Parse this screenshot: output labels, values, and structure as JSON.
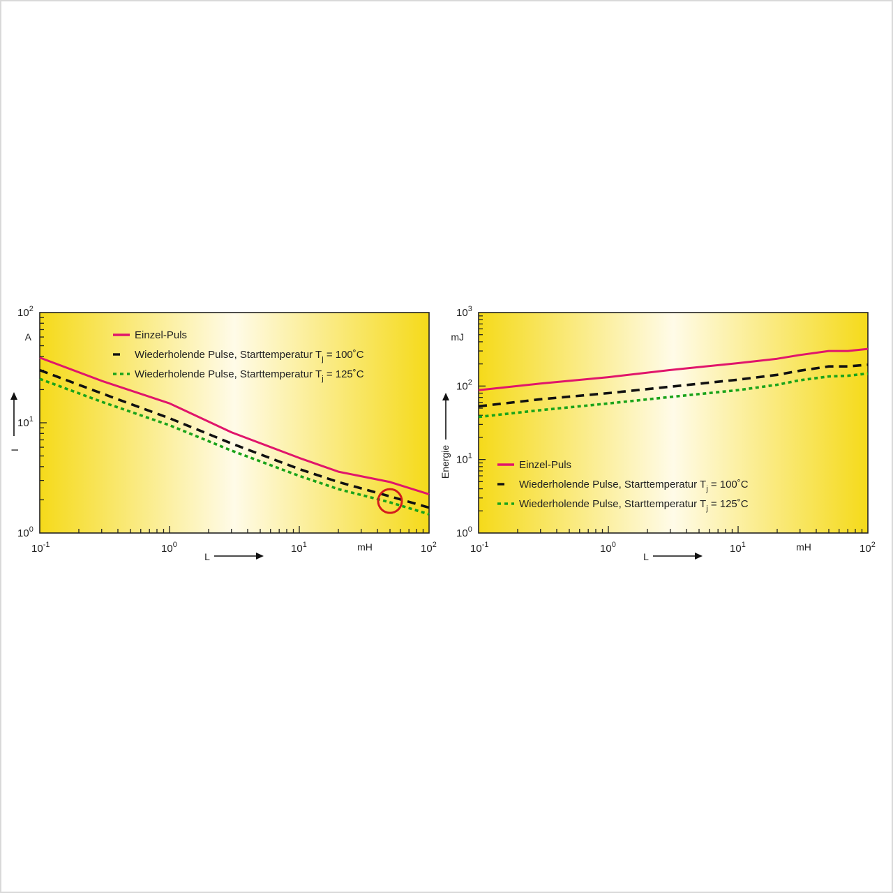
{
  "colors": {
    "series_single": "#e0156b",
    "series_100": "#111111",
    "series_125": "#1aa31a",
    "plot_bg_edge": "#f5da1a",
    "plot_bg_center": "#fffbe8",
    "marker_circle": "#d41c1c"
  },
  "chart_data": [
    {
      "type": "line",
      "x_scale": "log",
      "y_scale": "log",
      "xlim": [
        0.1,
        100
      ],
      "ylim": [
        1,
        100
      ],
      "xlabel": "L",
      "xunit": "mH",
      "ylabel": "I",
      "yunit": "A",
      "x_ticks": [
        {
          "base": "10",
          "exp": "-1"
        },
        {
          "base": "10",
          "exp": "0"
        },
        {
          "base": "10",
          "exp": "1"
        },
        {
          "base": "10",
          "exp": "2"
        }
      ],
      "y_ticks": [
        {
          "base": "10",
          "exp": "0"
        },
        {
          "base": "10",
          "exp": "1"
        },
        {
          "base": "10",
          "exp": "2"
        }
      ],
      "legend_position": "top-left",
      "series": [
        {
          "name_main": "Einzel-Puls",
          "name_sub": "",
          "name_tail": "",
          "style": "solid",
          "color_key": "series_single",
          "x": [
            0.1,
            0.3,
            1,
            3,
            10,
            20,
            50,
            100
          ],
          "y": [
            39,
            24,
            15,
            8.2,
            4.8,
            3.6,
            2.9,
            2.25
          ]
        },
        {
          "name_main": "Wiederholende Pulse, Starttemperatur T",
          "name_sub": "j",
          "name_tail": " = 100˚C",
          "style": "dashed",
          "color_key": "series_100",
          "x": [
            0.1,
            0.3,
            1,
            3,
            10,
            20,
            50,
            100
          ],
          "y": [
            30,
            18.5,
            11,
            6.5,
            3.8,
            2.9,
            2.15,
            1.7
          ]
        },
        {
          "name_main": "Wiederholende Pulse, Starttemperatur T",
          "name_sub": "j",
          "name_tail": " = 125˚C",
          "style": "dotted",
          "color_key": "series_125",
          "x": [
            0.1,
            0.3,
            1,
            3,
            10,
            20,
            50,
            100
          ],
          "y": [
            25,
            15.5,
            9.5,
            5.6,
            3.3,
            2.5,
            1.9,
            1.48
          ]
        }
      ],
      "annotation": {
        "type": "circle",
        "x": 50,
        "y": 1.95
      }
    },
    {
      "type": "line",
      "x_scale": "log",
      "y_scale": "log",
      "xlim": [
        0.1,
        100
      ],
      "ylim": [
        1,
        1000
      ],
      "xlabel": "L",
      "xunit": "mH",
      "ylabel": "Energie",
      "yunit": "mJ",
      "x_ticks": [
        {
          "base": "10",
          "exp": "-1"
        },
        {
          "base": "10",
          "exp": "0"
        },
        {
          "base": "10",
          "exp": "1"
        },
        {
          "base": "10",
          "exp": "2"
        }
      ],
      "y_ticks": [
        {
          "base": "10",
          "exp": "0"
        },
        {
          "base": "10",
          "exp": "1"
        },
        {
          "base": "10",
          "exp": "2"
        },
        {
          "base": "10",
          "exp": "3"
        }
      ],
      "legend_position": "bottom-left",
      "series": [
        {
          "name_main": "Einzel-Puls",
          "name_sub": "",
          "name_tail": "",
          "style": "solid",
          "color_key": "series_single",
          "x": [
            0.1,
            0.3,
            1,
            3,
            10,
            20,
            30,
            50,
            70,
            100
          ],
          "y": [
            88,
            108,
            132,
            165,
            205,
            235,
            265,
            300,
            300,
            320
          ]
        },
        {
          "name_main": "Wiederholende Pulse, Starttemperatur T",
          "name_sub": "j",
          "name_tail": " = 100˚C",
          "style": "dashed",
          "color_key": "series_100",
          "x": [
            0.1,
            0.3,
            1,
            3,
            10,
            20,
            30,
            50,
            70,
            100
          ],
          "y": [
            53,
            66,
            80,
            98,
            122,
            142,
            162,
            185,
            185,
            195
          ]
        },
        {
          "name_main": "Wiederholende Pulse, Starttemperatur T",
          "name_sub": "j",
          "name_tail": " = 125˚C",
          "style": "dotted",
          "color_key": "series_125",
          "x": [
            0.1,
            0.3,
            1,
            3,
            10,
            20,
            30,
            50,
            70,
            100
          ],
          "y": [
            38,
            47,
            58,
            71,
            88,
            104,
            120,
            135,
            138,
            148
          ]
        }
      ]
    }
  ]
}
